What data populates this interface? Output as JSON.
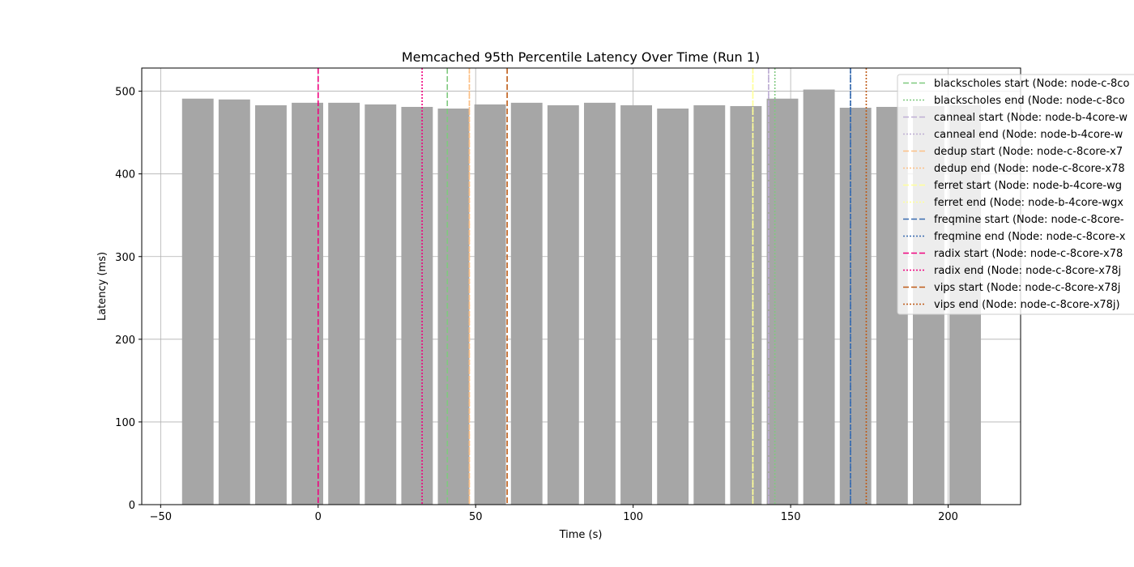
{
  "chart_data": {
    "type": "bar",
    "title": "Memcached 95th Percentile Latency Over Time (Run 1)",
    "xlabel": "Time (s)",
    "ylabel": "Latency (ms)",
    "xlim": [
      -56,
      223
    ],
    "ylim": [
      0,
      528
    ],
    "grid": true,
    "legend_position": "top-right",
    "bar_width": 10,
    "bar_color": "#a6a6a6",
    "x_ticks": [
      -50,
      0,
      50,
      100,
      150,
      200
    ],
    "x_tick_labels": [
      "−50",
      "0",
      "50",
      "100",
      "150",
      "200"
    ],
    "y_ticks": [
      0,
      100,
      200,
      300,
      400,
      500
    ],
    "y_tick_labels": [
      "0",
      "100",
      "200",
      "300",
      "400",
      "500"
    ],
    "bars": [
      {
        "x": -38.2,
        "y": 491
      },
      {
        "x": -26.6,
        "y": 490
      },
      {
        "x": -15.0,
        "y": 483
      },
      {
        "x": -3.4,
        "y": 486
      },
      {
        "x": 8.2,
        "y": 486
      },
      {
        "x": 19.8,
        "y": 484
      },
      {
        "x": 31.4,
        "y": 481
      },
      {
        "x": 43.0,
        "y": 479
      },
      {
        "x": 54.6,
        "y": 484
      },
      {
        "x": 66.2,
        "y": 486
      },
      {
        "x": 77.8,
        "y": 483
      },
      {
        "x": 89.4,
        "y": 486
      },
      {
        "x": 101.0,
        "y": 483
      },
      {
        "x": 112.6,
        "y": 479
      },
      {
        "x": 124.2,
        "y": 483
      },
      {
        "x": 135.8,
        "y": 482
      },
      {
        "x": 147.4,
        "y": 491
      },
      {
        "x": 159.0,
        "y": 502
      },
      {
        "x": 170.6,
        "y": 480
      },
      {
        "x": 182.2,
        "y": 481
      },
      {
        "x": 193.8,
        "y": 482
      },
      {
        "x": 205.4,
        "y": 483
      }
    ],
    "vlines": [
      {
        "x": 41.0,
        "color": "#7fc97f",
        "dash": "dashed",
        "label": "blackscholes start (Node: node-c-8co"
      },
      {
        "x": 145.0,
        "color": "#7fc97f",
        "dash": "dotted",
        "label": "blackscholes end (Node: node-c-8co"
      },
      {
        "x": 143.0,
        "color": "#beaed4",
        "dash": "dashed",
        "label": "canneal start (Node: node-b-4core-w"
      },
      {
        "x": 143.0,
        "color": "#beaed4",
        "dash": "dotted",
        "label": "canneal end (Node: node-b-4core-w"
      },
      {
        "x": 48.0,
        "color": "#fdc086",
        "dash": "dashed",
        "label": "dedup start (Node: node-c-8core-x7"
      },
      {
        "x": 48.0,
        "color": "#fdc086",
        "dash": "dotted",
        "label": "dedup end (Node: node-c-8core-x78"
      },
      {
        "x": 138.0,
        "color": "#ffff99",
        "dash": "dashed",
        "label": "ferret start (Node: node-b-4core-wg"
      },
      {
        "x": 138.0,
        "color": "#ffff99",
        "dash": "dotted",
        "label": "ferret end (Node: node-b-4core-wgx"
      },
      {
        "x": 169.0,
        "color": "#386cb0",
        "dash": "dashed",
        "label": "freqmine start (Node: node-c-8core-"
      },
      {
        "x": 169.0,
        "color": "#386cb0",
        "dash": "dotted",
        "label": "freqmine end (Node: node-c-8core-x"
      },
      {
        "x": 0.0,
        "color": "#f0027f",
        "dash": "dashed",
        "label": "radix start (Node: node-c-8core-x78"
      },
      {
        "x": 33.0,
        "color": "#f0027f",
        "dash": "dotted",
        "label": "radix end (Node: node-c-8core-x78j"
      },
      {
        "x": 60.0,
        "color": "#bf5b17",
        "dash": "dashed",
        "label": "vips start (Node: node-c-8core-x78j"
      },
      {
        "x": 174.0,
        "color": "#bf5b17",
        "dash": "dotted",
        "label": "vips end (Node: node-c-8core-x78j)"
      }
    ]
  }
}
